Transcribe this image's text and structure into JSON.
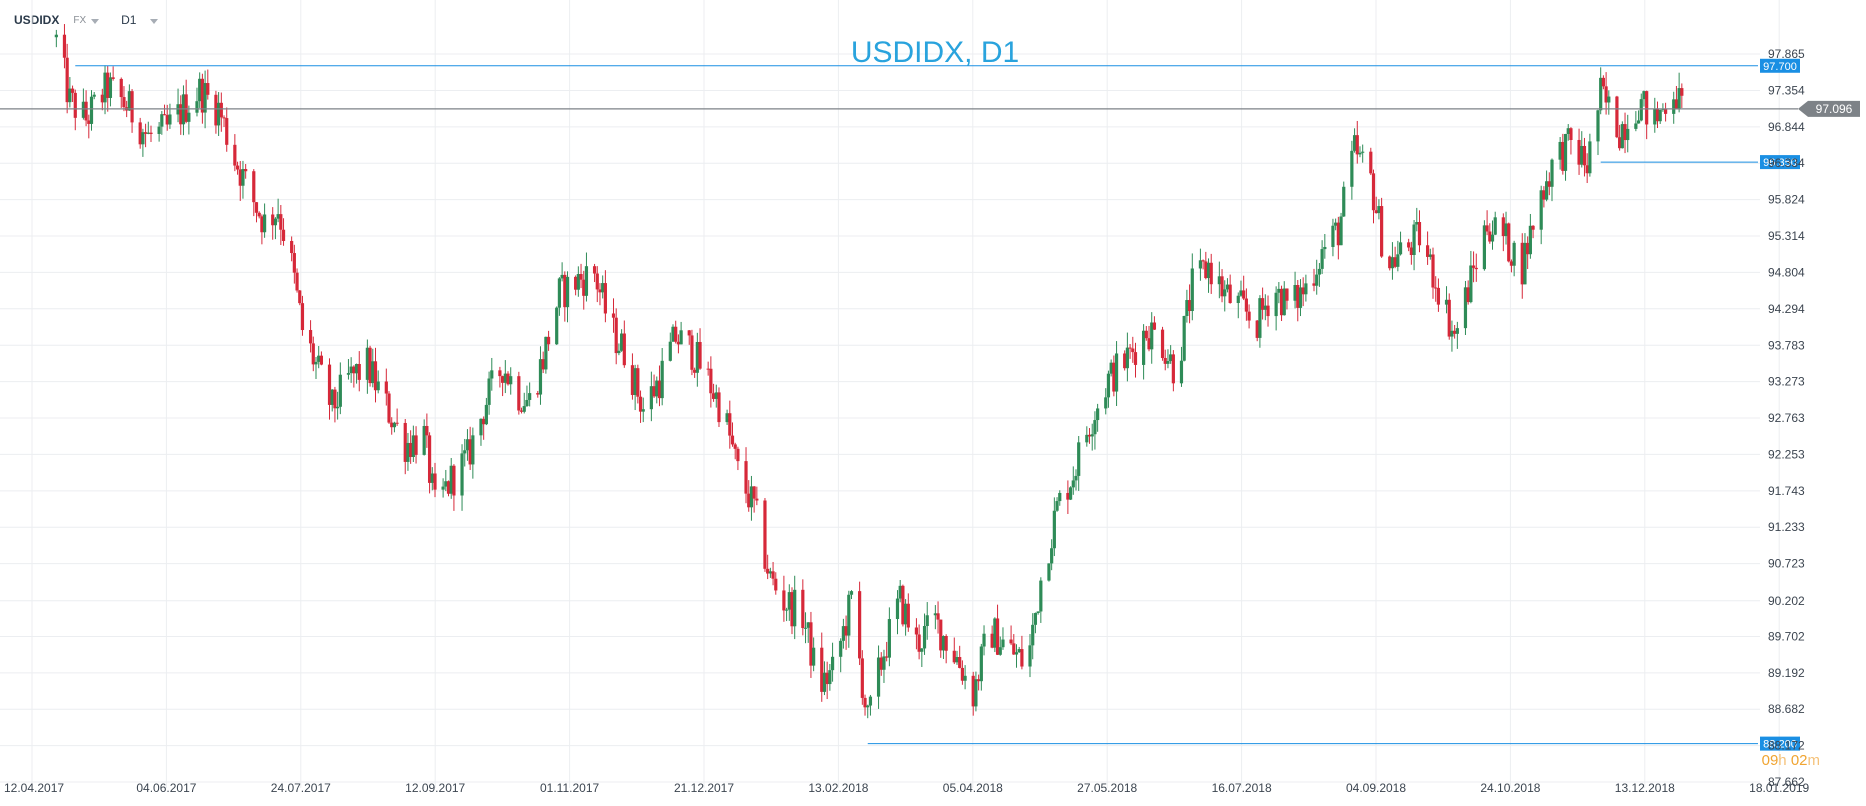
{
  "toolbar": {
    "symbol": "USDIDX",
    "market": "FX",
    "timeframe": "D1"
  },
  "timer": {
    "hours": "09",
    "hours_unit": "h",
    "minutes": "02",
    "minutes_unit": "m"
  },
  "colors": {
    "up": "#2e8b57",
    "down": "#d62839",
    "level": "#1a8fe3",
    "current": "#7d8287",
    "grid": "#eceef1",
    "title": "#29a3dd"
  },
  "chart_data": {
    "type": "candlestick",
    "title": "USDIDX, D1",
    "y_ticks": [
      "97.865",
      "97.354",
      "96.844",
      "96.334",
      "95.824",
      "95.314",
      "94.804",
      "94.294",
      "93.783",
      "93.273",
      "92.763",
      "92.253",
      "91.743",
      "91.233",
      "90.723",
      "90.202",
      "89.702",
      "89.192",
      "88.682",
      "88.172",
      "87.662"
    ],
    "x_ticks": [
      "12.04.2017",
      "04.06.2017",
      "24.07.2017",
      "12.09.2017",
      "01.11.2017",
      "21.12.2017",
      "13.02.2018",
      "05.04.2018",
      "27.05.2018",
      "16.07.2018",
      "04.09.2018",
      "24.10.2018",
      "13.12.2018",
      "18.01.2019"
    ],
    "ylim": [
      87.662,
      97.865
    ],
    "grid": true,
    "levels": [
      {
        "label": "97.700",
        "value": 97.7,
        "from_date": "2017-04-28"
      },
      {
        "label": "96.350",
        "value": 96.35,
        "from_date": "2018-11-13"
      },
      {
        "label": "88.200",
        "value": 88.2,
        "from_date": "2018-02-15"
      }
    ],
    "current_price": {
      "label": "97.096",
      "value": 97.096
    },
    "anchors": [
      [
        "2017-04-21",
        98.05
      ],
      [
        "2017-04-26",
        97.2
      ],
      [
        "2017-05-02",
        96.95
      ],
      [
        "2017-05-10",
        97.4
      ],
      [
        "2017-05-18",
        97.1
      ],
      [
        "2017-05-25",
        96.7
      ],
      [
        "2017-06-01",
        96.8
      ],
      [
        "2017-06-07",
        97.1
      ],
      [
        "2017-06-13",
        97.35
      ],
      [
        "2017-06-20",
        97.1
      ],
      [
        "2017-06-26",
        96.4
      ],
      [
        "2017-07-03",
        95.8
      ],
      [
        "2017-07-07",
        95.5
      ],
      [
        "2017-07-12",
        95.7
      ],
      [
        "2017-07-17",
        94.9
      ],
      [
        "2017-07-21",
        94.0
      ],
      [
        "2017-07-26",
        93.5
      ],
      [
        "2017-08-01",
        92.9
      ],
      [
        "2017-08-07",
        93.3
      ],
      [
        "2017-08-14",
        93.5
      ],
      [
        "2017-08-20",
        93.0
      ],
      [
        "2017-08-28",
        92.4
      ],
      [
        "2017-09-04",
        92.5
      ],
      [
        "2017-09-08",
        91.5
      ],
      [
        "2017-09-14",
        91.9
      ],
      [
        "2017-09-20",
        92.2
      ],
      [
        "2017-09-27",
        93.0
      ],
      [
        "2017-10-03",
        93.5
      ],
      [
        "2017-10-09",
        93.1
      ],
      [
        "2017-10-13",
        93.0
      ],
      [
        "2017-10-18",
        93.6
      ],
      [
        "2017-10-24",
        94.5
      ],
      [
        "2017-10-31",
        94.7
      ],
      [
        "2017-11-06",
        94.8
      ],
      [
        "2017-11-12",
        94.0
      ],
      [
        "2017-11-17",
        93.7
      ],
      [
        "2017-11-24",
        92.9
      ],
      [
        "2017-11-30",
        93.3
      ],
      [
        "2017-12-06",
        93.9
      ],
      [
        "2017-12-12",
        93.7
      ],
      [
        "2017-12-18",
        93.3
      ],
      [
        "2017-12-24",
        92.8
      ],
      [
        "2017-12-29",
        92.0
      ],
      [
        "2018-01-04",
        91.5
      ],
      [
        "2018-01-10",
        90.5
      ],
      [
        "2018-01-15",
        90.2
      ],
      [
        "2018-01-22",
        90.0
      ],
      [
        "2018-01-28",
        89.0
      ],
      [
        "2018-02-02",
        89.2
      ],
      [
        "2018-02-09",
        90.2
      ],
      [
        "2018-02-15",
        88.5
      ],
      [
        "2018-02-21",
        89.5
      ],
      [
        "2018-02-27",
        90.2
      ],
      [
        "2018-03-05",
        89.6
      ],
      [
        "2018-03-12",
        89.9
      ],
      [
        "2018-03-20",
        89.4
      ],
      [
        "2018-03-26",
        88.9
      ],
      [
        "2018-04-01",
        89.8
      ],
      [
        "2018-04-09",
        89.5
      ],
      [
        "2018-04-15",
        89.3
      ],
      [
        "2018-04-20",
        90.5
      ],
      [
        "2018-04-26",
        91.5
      ],
      [
        "2018-05-02",
        92.0
      ],
      [
        "2018-05-08",
        92.7
      ],
      [
        "2018-05-15",
        93.3
      ],
      [
        "2018-05-22",
        93.6
      ],
      [
        "2018-05-29",
        94.0
      ],
      [
        "2018-06-03",
        93.9
      ],
      [
        "2018-06-09",
        93.4
      ],
      [
        "2018-06-15",
        94.6
      ],
      [
        "2018-06-21",
        94.9
      ],
      [
        "2018-06-27",
        94.5
      ],
      [
        "2018-07-03",
        94.3
      ],
      [
        "2018-07-09",
        94.1
      ],
      [
        "2018-07-15",
        94.6
      ],
      [
        "2018-07-21",
        94.3
      ],
      [
        "2018-07-27",
        94.6
      ],
      [
        "2018-08-02",
        95.1
      ],
      [
        "2018-08-08",
        95.4
      ],
      [
        "2018-08-14",
        96.5
      ],
      [
        "2018-08-20",
        96.1
      ],
      [
        "2018-08-26",
        94.9
      ],
      [
        "2018-09-01",
        95.1
      ],
      [
        "2018-09-07",
        95.3
      ],
      [
        "2018-09-14",
        94.6
      ],
      [
        "2018-09-20",
        93.9
      ],
      [
        "2018-09-26",
        94.7
      ],
      [
        "2018-10-02",
        95.5
      ],
      [
        "2018-10-08",
        95.3
      ],
      [
        "2018-10-15",
        94.9
      ],
      [
        "2018-10-21",
        95.8
      ],
      [
        "2018-10-27",
        96.4
      ],
      [
        "2018-11-02",
        96.6
      ],
      [
        "2018-11-08",
        96.3
      ],
      [
        "2018-11-13",
        97.3
      ],
      [
        "2018-11-20",
        96.8
      ],
      [
        "2018-11-27",
        97.2
      ],
      [
        "2018-12-03",
        96.9
      ],
      [
        "2018-12-10",
        97.4
      ],
      [
        "2018-12-13",
        97.1
      ]
    ]
  }
}
